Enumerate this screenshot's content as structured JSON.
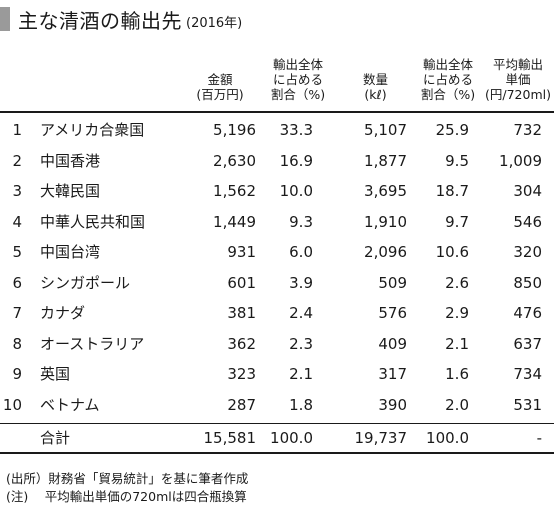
{
  "title": "主な清酒の輸出先",
  "year": "(2016年)",
  "headers": {
    "amount": [
      "金額",
      "(百万円)"
    ],
    "amount_share": [
      "輸出全体",
      "に占める",
      "割合（%)"
    ],
    "volume": [
      "数量",
      "(kℓ)"
    ],
    "volume_share": [
      "輸出全体",
      "に占める",
      "割合（%)"
    ],
    "unit_price": [
      "平均輸出",
      "単価",
      "(円/720ml)"
    ]
  },
  "rows": [
    {
      "rank": "1",
      "country": "アメリカ合衆国",
      "amount": "5,196",
      "amount_share": "33.3",
      "volume": "5,107",
      "volume_share": "25.9",
      "unit_price": "732"
    },
    {
      "rank": "2",
      "country": "中国香港",
      "amount": "2,630",
      "amount_share": "16.9",
      "volume": "1,877",
      "volume_share": "9.5",
      "unit_price": "1,009"
    },
    {
      "rank": "3",
      "country": "大韓民国",
      "amount": "1,562",
      "amount_share": "10.0",
      "volume": "3,695",
      "volume_share": "18.7",
      "unit_price": "304"
    },
    {
      "rank": "4",
      "country": "中華人民共和国",
      "amount": "1,449",
      "amount_share": "9.3",
      "volume": "1,910",
      "volume_share": "9.7",
      "unit_price": "546"
    },
    {
      "rank": "5",
      "country": "中国台湾",
      "amount": "931",
      "amount_share": "6.0",
      "volume": "2,096",
      "volume_share": "10.6",
      "unit_price": "320"
    },
    {
      "rank": "6",
      "country": "シンガポール",
      "amount": "601",
      "amount_share": "3.9",
      "volume": "509",
      "volume_share": "2.6",
      "unit_price": "850"
    },
    {
      "rank": "7",
      "country": "カナダ",
      "amount": "381",
      "amount_share": "2.4",
      "volume": "576",
      "volume_share": "2.9",
      "unit_price": "476"
    },
    {
      "rank": "8",
      "country": "オーストラリア",
      "amount": "362",
      "amount_share": "2.3",
      "volume": "409",
      "volume_share": "2.1",
      "unit_price": "637"
    },
    {
      "rank": "9",
      "country": "英国",
      "amount": "323",
      "amount_share": "2.1",
      "volume": "317",
      "volume_share": "1.6",
      "unit_price": "734"
    },
    {
      "rank": "10",
      "country": "ベトナム",
      "amount": "287",
      "amount_share": "1.8",
      "volume": "390",
      "volume_share": "2.0",
      "unit_price": "531"
    }
  ],
  "total": {
    "label": "合計",
    "amount": "15,581",
    "amount_share": "100.0",
    "volume": "19,737",
    "volume_share": "100.0",
    "unit_price": "-"
  },
  "footnotes": [
    "(出所）財務省「貿易統計」を基に筆者作成",
    "(注)　 平均輸出単価の720mlは四合瓶換算"
  ]
}
